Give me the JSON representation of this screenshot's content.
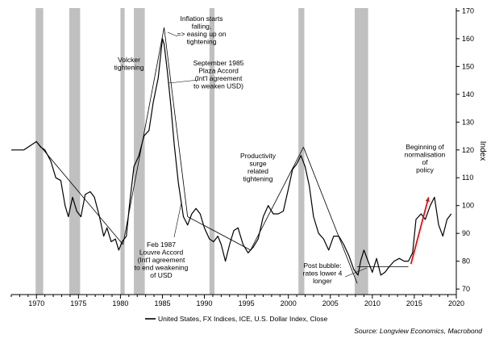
{
  "chart_data": {
    "type": "line",
    "ylabel": "Index",
    "xlim": [
      1967,
      2020
    ],
    "ylim": [
      68,
      171
    ],
    "grid": false,
    "xticks": [
      1970,
      1975,
      1980,
      1985,
      1990,
      1995,
      2000,
      2005,
      2010,
      2015,
      2020
    ],
    "yticks": [
      70,
      80,
      90,
      100,
      110,
      120,
      130,
      140,
      150,
      160,
      170
    ],
    "recessions": [
      [
        1969.9,
        1970.8
      ],
      [
        1973.9,
        1975.2
      ],
      [
        1980.0,
        1980.5
      ],
      [
        1981.6,
        1982.9
      ],
      [
        1990.6,
        1991.2
      ],
      [
        2001.2,
        2001.9
      ],
      [
        2007.9,
        2009.5
      ]
    ],
    "series": [
      {
        "name": "United States, FX Indices, ICE, U.S. Dollar Index, Close",
        "color": "#000000",
        "x": [
          1967.0,
          1968.5,
          1969.5,
          1970.0,
          1970.5,
          1971.0,
          1971.7,
          1972.3,
          1972.9,
          1973.4,
          1973.8,
          1974.3,
          1974.8,
          1975.3,
          1975.8,
          1976.4,
          1976.9,
          1977.5,
          1978.0,
          1978.4,
          1978.9,
          1979.4,
          1979.8,
          1980.2,
          1980.7,
          1981.1,
          1981.6,
          1982.2,
          1982.8,
          1983.4,
          1983.9,
          1984.5,
          1985.0,
          1985.2,
          1985.6,
          1986.0,
          1986.4,
          1986.9,
          1987.5,
          1988.0,
          1988.5,
          1989.0,
          1989.5,
          1990.0,
          1990.6,
          1991.1,
          1991.6,
          1992.0,
          1992.5,
          1993.0,
          1993.5,
          1994.0,
          1994.6,
          1995.2,
          1995.8,
          1996.4,
          1997.0,
          1997.6,
          1998.2,
          1998.8,
          1999.4,
          2000.0,
          2000.5,
          2001.0,
          2001.5,
          2002.0,
          2002.5,
          2003.0,
          2003.6,
          2004.2,
          2004.8,
          2005.4,
          2006.0,
          2006.6,
          2007.2,
          2007.8,
          2008.3,
          2008.6,
          2009.0,
          2009.5,
          2010.0,
          2010.5,
          2011.0,
          2011.5,
          2012.0,
          2012.6,
          2013.2,
          2013.8,
          2014.3,
          2014.8,
          2015.2,
          2015.8,
          2016.3,
          2016.9,
          2017.4,
          2017.9,
          2018.4,
          2018.9,
          2019.4
        ],
        "values": [
          120,
          120,
          122,
          123,
          121,
          120,
          116,
          110,
          109,
          100,
          96,
          103,
          98,
          96,
          104,
          105,
          103,
          96,
          89,
          92,
          87,
          88,
          84,
          87,
          89,
          101,
          114,
          118,
          125,
          127,
          137,
          146,
          160,
          158,
          148,
          136,
          122,
          108,
          96,
          93,
          97,
          99,
          97,
          92,
          88,
          87,
          89,
          86,
          80,
          86,
          91,
          92,
          86,
          83,
          85,
          88,
          96,
          100,
          97,
          97,
          98,
          106,
          113,
          115,
          118,
          114,
          107,
          96,
          90,
          88,
          84,
          89,
          89,
          86,
          82,
          77,
          75,
          80,
          84,
          80,
          76,
          81,
          75,
          76,
          78,
          80,
          81,
          80,
          80,
          83,
          95,
          97,
          95,
          100,
          103,
          93,
          89,
          95,
          97
        ]
      }
    ],
    "annotations": {
      "volcker": [
        "Volcker",
        "tightening"
      ],
      "inflation": [
        "Inflation starts",
        "falling,",
        "=> easing up on",
        "tightening"
      ],
      "plaza": [
        "September 1985",
        "Plaza Accord",
        "(Int'l agreement",
        "to weaken USD)"
      ],
      "louvre": [
        "Feb 1987",
        "Louvre Accord",
        "(Int'l agreement",
        "to end weakening",
        "of USD"
      ],
      "productivity": [
        "Productivity",
        "surge",
        "related",
        "tightening"
      ],
      "post_bubble": [
        "Post bubble:",
        "rates lower 4",
        "longer"
      ],
      "normalisation": [
        "Beginning of",
        "normalisation",
        "of",
        "policy"
      ]
    },
    "legend_entry": "United States, FX Indices, ICE, U.S. Dollar Index, Close",
    "source": "Source: Longview Economics, Macrobond",
    "colors": {
      "line": "#000000",
      "recession": "#c0c0c0",
      "arrow_highlight": "#e01010"
    }
  }
}
